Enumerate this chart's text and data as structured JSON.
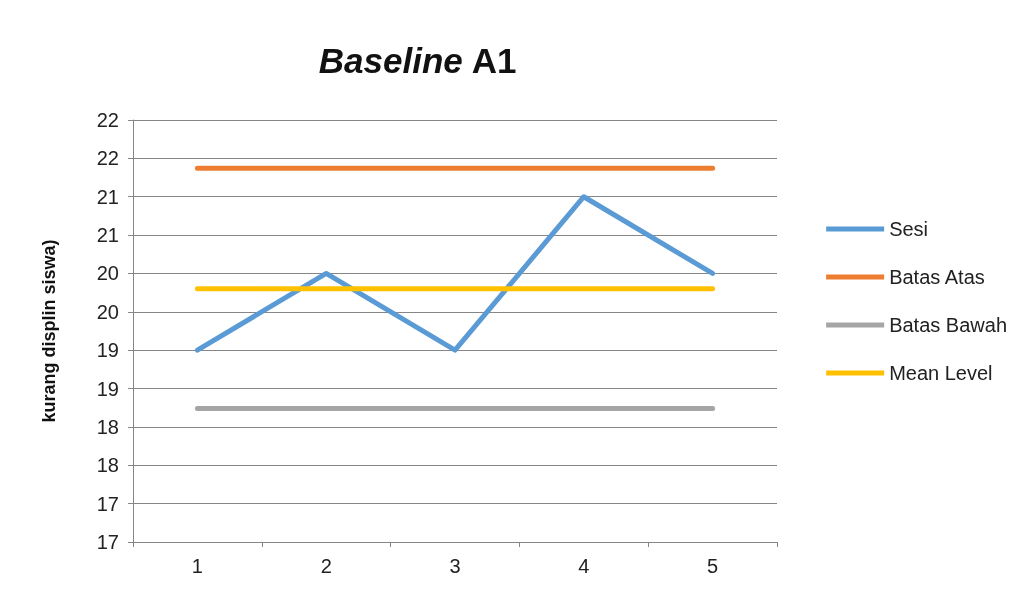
{
  "chart_data": {
    "type": "line",
    "title": "Baseline A1",
    "ylabel": "kurang displin siswa)",
    "categories": [
      "1",
      "2",
      "3",
      "4",
      "5"
    ],
    "series": [
      {
        "name": "Sesi",
        "color": "#5b9bd5",
        "values": [
          19,
          20,
          19,
          21,
          20
        ]
      },
      {
        "name": "Batas Atas",
        "color": "#ed7d31",
        "values": [
          21.37,
          21.37,
          21.37,
          21.37,
          21.37
        ]
      },
      {
        "name": "Batas Bawah",
        "color": "#a5a5a5",
        "values": [
          18.24,
          18.24,
          18.24,
          18.24,
          18.24
        ]
      },
      {
        "name": "Mean Level",
        "color": "#ffc000",
        "values": [
          19.8,
          19.8,
          19.8,
          19.8,
          19.8
        ]
      }
    ],
    "ylim": [
      16.5,
      22
    ],
    "yticks": [
      {
        "value": 16.5,
        "label": "17"
      },
      {
        "value": 17,
        "label": "17"
      },
      {
        "value": 17.5,
        "label": "18"
      },
      {
        "value": 18,
        "label": "18"
      },
      {
        "value": 18.5,
        "label": "19"
      },
      {
        "value": 19,
        "label": "19"
      },
      {
        "value": 19.5,
        "label": "20"
      },
      {
        "value": 20,
        "label": "20"
      },
      {
        "value": 20.5,
        "label": "21"
      },
      {
        "value": 21,
        "label": "21"
      },
      {
        "value": 21.5,
        "label": "22"
      },
      {
        "value": 22,
        "label": "22"
      }
    ],
    "grid": "y",
    "legend": "right",
    "marker": "none",
    "line_style": "solid"
  }
}
